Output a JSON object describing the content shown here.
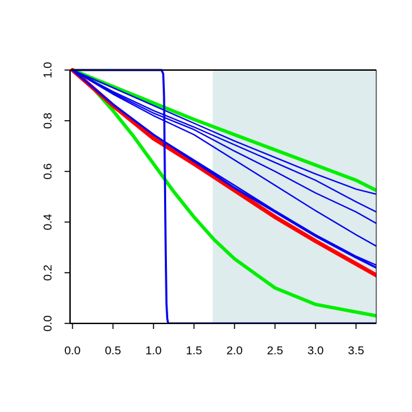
{
  "chart_data": {
    "type": "line",
    "title": "",
    "xlabel": "",
    "ylabel": "",
    "xlim": [
      -0.03,
      3.75
    ],
    "ylim": [
      0.0,
      1.0
    ],
    "grid": false,
    "x_ticks": [
      0.0,
      0.5,
      1.0,
      1.5,
      2.0,
      2.5,
      3.0,
      3.5
    ],
    "x_tick_labels": [
      "0.0",
      "0.5",
      "1.0",
      "1.5",
      "2.0",
      "2.5",
      "3.0",
      "3.5"
    ],
    "y_ticks": [
      0.0,
      0.2,
      0.4,
      0.6,
      0.8,
      1.0
    ],
    "y_tick_labels": [
      "0.0",
      "0.2",
      "0.4",
      "0.6",
      "0.8",
      "1.0"
    ],
    "shaded_region": {
      "x_start": 1.73,
      "x_end": 3.75,
      "color": "#deeced"
    },
    "series": [
      {
        "color": "#00ee00",
        "width": 5,
        "x": [
          0.0,
          0.5,
          1.0,
          1.5,
          2.0,
          2.5,
          3.0,
          3.5,
          3.75
        ],
        "y": [
          1.0,
          0.935,
          0.87,
          0.805,
          0.745,
          0.685,
          0.625,
          0.565,
          0.525
        ]
      },
      {
        "color": "#00ee00",
        "width": 5,
        "x": [
          0.0,
          0.25,
          0.5,
          0.75,
          1.0,
          1.25,
          1.5,
          1.75,
          2.0,
          2.5,
          3.0,
          3.5,
          3.75
        ],
        "y": [
          1.0,
          0.93,
          0.84,
          0.74,
          0.63,
          0.52,
          0.42,
          0.33,
          0.255,
          0.14,
          0.075,
          0.045,
          0.03
        ]
      },
      {
        "color": "#ff0000",
        "width": 6,
        "x": [
          0.0,
          0.5,
          1.0,
          1.5,
          2.0,
          2.5,
          3.0,
          3.5,
          3.75
        ],
        "y": [
          1.0,
          0.86,
          0.73,
          0.63,
          0.525,
          0.42,
          0.325,
          0.235,
          0.19
        ]
      },
      {
        "color": "#0000ee",
        "width": 3,
        "x": [
          0.0,
          0.5,
          1.0,
          1.5,
          2.0,
          2.5,
          3.0,
          3.5,
          3.75
        ],
        "y": [
          1.0,
          0.865,
          0.745,
          0.64,
          0.535,
          0.44,
          0.345,
          0.26,
          0.22
        ]
      },
      {
        "color": "#0000ee",
        "width": 2,
        "x": [
          0.0,
          0.5,
          1.0,
          1.5,
          2.0,
          2.5,
          3.0,
          3.5,
          3.75
        ],
        "y": [
          1.0,
          0.865,
          0.745,
          0.645,
          0.545,
          0.445,
          0.35,
          0.265,
          0.23
        ]
      },
      {
        "color": "#0000ee",
        "width": 2,
        "x": [
          0.0,
          0.5,
          1.0,
          1.5,
          2.0,
          2.5,
          3.0,
          3.5,
          3.75
        ],
        "y": [
          1.0,
          0.905,
          0.82,
          0.745,
          0.645,
          0.545,
          0.445,
          0.35,
          0.305
        ]
      },
      {
        "color": "#0000ee",
        "width": 2,
        "x": [
          0.0,
          0.5,
          1.0,
          1.5,
          2.0,
          2.5,
          3.0,
          3.5,
          3.75
        ],
        "y": [
          1.0,
          0.91,
          0.83,
          0.765,
          0.68,
          0.6,
          0.515,
          0.44,
          0.395
        ]
      },
      {
        "color": "#0000ee",
        "width": 2,
        "x": [
          0.0,
          0.5,
          1.0,
          1.5,
          2.0,
          2.5,
          3.0,
          3.5,
          3.75
        ],
        "y": [
          1.0,
          0.915,
          0.84,
          0.775,
          0.705,
          0.635,
          0.565,
          0.48,
          0.44
        ]
      },
      {
        "color": "#0000ee",
        "width": 2,
        "x": [
          0.0,
          0.5,
          1.0,
          1.5,
          2.0,
          2.5,
          3.0,
          3.5,
          3.75
        ],
        "y": [
          1.0,
          0.93,
          0.86,
          0.79,
          0.72,
          0.655,
          0.59,
          0.53,
          0.51
        ]
      },
      {
        "color": "#0000ee",
        "width": 3,
        "x": [
          0.0,
          0.5,
          1.0,
          1.1,
          1.12,
          1.13,
          1.14,
          1.15,
          1.16,
          1.17,
          1.18,
          3.75
        ],
        "y": [
          1.0,
          1.0,
          1.0,
          1.0,
          0.985,
          0.9,
          0.6,
          0.3,
          0.08,
          0.02,
          0.0,
          0.0
        ]
      }
    ]
  }
}
